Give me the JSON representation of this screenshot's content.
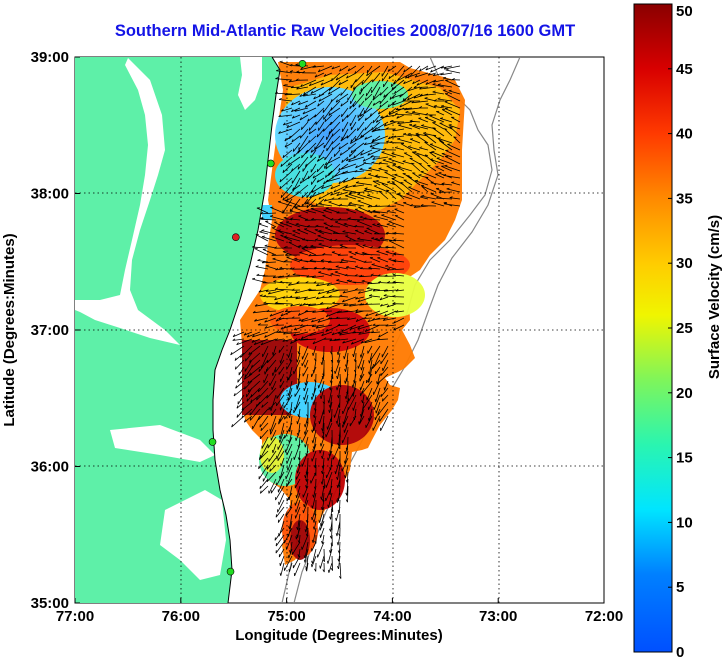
{
  "title": "Southern Mid-Atlantic Raw Velocities 2008/07/16 1600 GMT",
  "map": {
    "xlabel": "Longitude (Degrees:Minutes)",
    "ylabel": "Latitude (Degrees:Minutes)",
    "lon_range": [
      -77,
      -72
    ],
    "lat_range": [
      35,
      39
    ],
    "x_ticks": [
      "77:00",
      "76:00",
      "75:00",
      "74:00",
      "73:00",
      "72:00"
    ],
    "y_ticks": [
      "35:00",
      "36:00",
      "37:00",
      "38:00",
      "39:00"
    ],
    "grid": "dotted",
    "land_color": "#5ef0a8",
    "sites": [
      {
        "lon": -74.85,
        "lat": 38.95,
        "color": "#22dd22"
      },
      {
        "lon": -75.15,
        "lat": 38.22,
        "color": "#22dd22"
      },
      {
        "lon": -75.48,
        "lat": 37.68,
        "color": "#dd2222"
      },
      {
        "lon": -75.7,
        "lat": 36.18,
        "color": "#22dd22"
      },
      {
        "lon": -75.53,
        "lat": 35.23,
        "color": "#22dd22"
      }
    ]
  },
  "colorbar": {
    "label": "Surface Velocity (cm/s)",
    "min": 0,
    "max": 50,
    "ticks": [
      "0",
      "5",
      "10",
      "15",
      "20",
      "25",
      "30",
      "35",
      "40",
      "45",
      "50"
    ]
  }
}
